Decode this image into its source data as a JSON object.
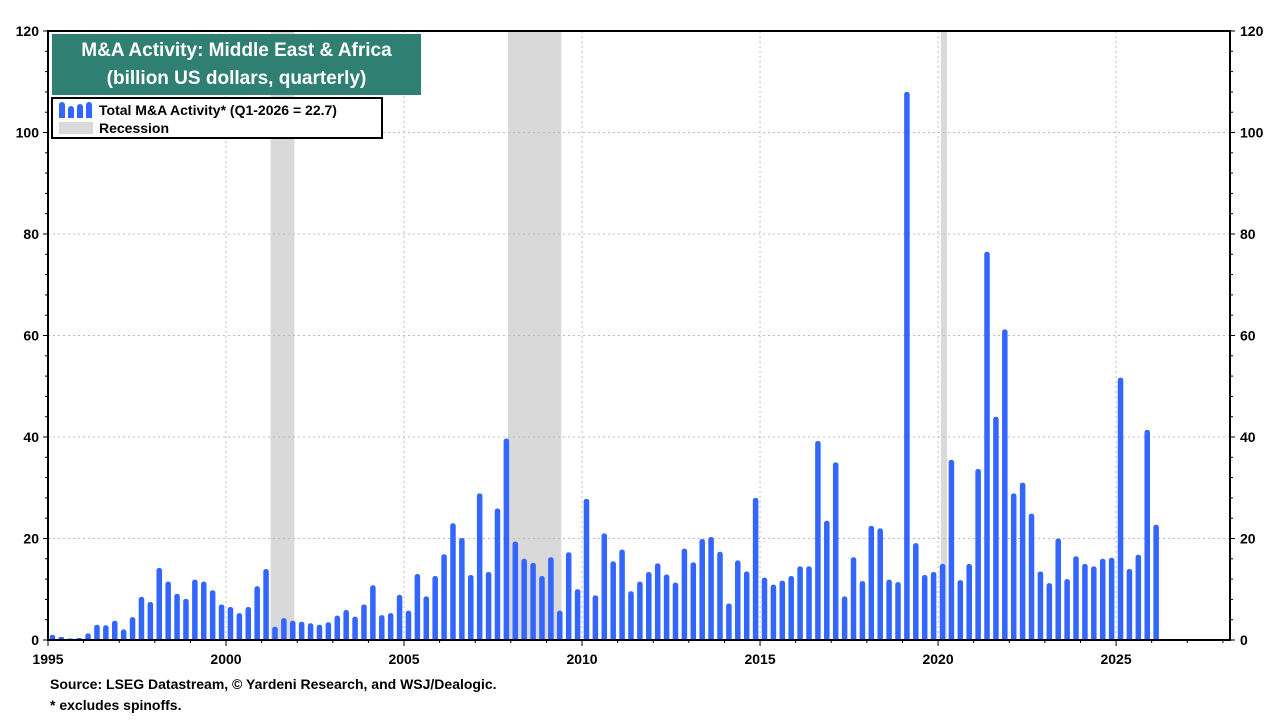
{
  "title_line1": "M&A Activity: Middle East & Africa",
  "title_line2": "(billion US dollars, quarterly)",
  "legend": {
    "series_label": "Total M&A Activity* (Q1-2026 = 22.7)",
    "recession_label": "Recession"
  },
  "footnotes": {
    "source": "Source: LSEG Datastream, © Yardeni Research, and WSJ/Dealogic.",
    "note": "* excludes spinoffs."
  },
  "colors": {
    "bar": "#3366ff",
    "recession": "#d9d9d9",
    "title_bg": "#2f7f72",
    "grid": "#bdbdbd"
  },
  "chart_data": {
    "type": "bar",
    "title": "M&A Activity: Middle East & Africa",
    "subtitle": "(billion US dollars, quarterly)",
    "xlabel": "",
    "ylabel": "",
    "xlim": [
      1995,
      2028.2
    ],
    "ylim": [
      0,
      120
    ],
    "x_ticks": [
      1995,
      2000,
      2005,
      2010,
      2015,
      2020,
      2025
    ],
    "y_ticks": [
      0,
      20,
      40,
      60,
      80,
      100,
      120
    ],
    "grid": true,
    "legend_position": "top-left",
    "recessions": [
      [
        2001.25,
        2001.92
      ],
      [
        2007.92,
        2009.42
      ],
      [
        2020.08,
        2020.25
      ]
    ],
    "start_quarter": "Q1-1995",
    "series": [
      {
        "name": "Total M&A Activity* (Q1-2026 = 22.7)",
        "values": [
          1.0,
          0.6,
          0.3,
          0.4,
          1.3,
          3.0,
          2.9,
          3.8,
          2.1,
          4.5,
          8.5,
          7.5,
          14.2,
          11.5,
          9.1,
          8.1,
          11.9,
          11.5,
          9.8,
          7.0,
          6.5,
          5.3,
          6.5,
          10.6,
          14.0,
          2.6,
          4.3,
          3.8,
          3.6,
          3.3,
          3.0,
          3.5,
          4.8,
          5.9,
          4.6,
          7.0,
          10.8,
          4.9,
          5.3,
          8.9,
          5.8,
          13.0,
          8.6,
          12.6,
          16.9,
          23.0,
          20.1,
          12.8,
          28.9,
          13.4,
          25.9,
          39.7,
          19.4,
          16.0,
          15.2,
          12.6,
          16.3,
          5.8,
          17.3,
          10.0,
          27.8,
          8.8,
          21.0,
          15.5,
          17.8,
          9.6,
          11.5,
          13.4,
          15.1,
          12.9,
          11.3,
          18.0,
          15.3,
          19.9,
          20.3,
          17.4,
          7.2,
          15.7,
          13.5,
          28.0,
          12.3,
          10.9,
          11.7,
          12.6,
          14.5,
          14.5,
          39.2,
          23.5,
          35.0,
          8.6,
          16.3,
          11.6,
          22.5,
          22.0,
          11.9,
          11.4,
          108.0,
          19.1,
          12.8,
          13.4,
          15.0,
          35.5,
          11.8,
          15.0,
          33.7,
          76.5,
          44.0,
          61.2,
          28.9,
          31.0,
          24.9,
          13.5,
          11.2,
          20.0,
          12.0,
          16.5,
          15.0,
          14.5,
          16.0,
          16.2,
          51.7,
          14.0,
          16.8,
          41.4,
          22.7
        ]
      }
    ]
  }
}
